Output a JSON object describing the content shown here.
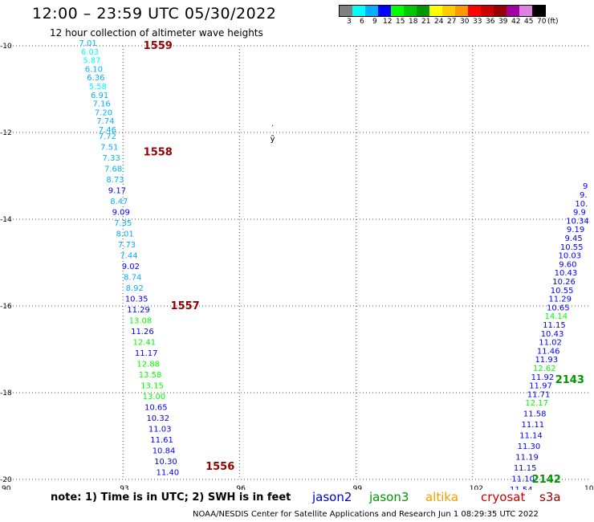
{
  "header": {
    "title": "12:00 – 23:59 UTC 05/30/2022",
    "subtitle": "12 hour collection of altimeter wave heights"
  },
  "color_scale": {
    "colors": [
      "#808080",
      "#00ffff",
      "#00b0ff",
      "#0000ff",
      "#00ff00",
      "#00c800",
      "#009600",
      "#ffff00",
      "#ffcc00",
      "#ff9900",
      "#ff0000",
      "#c80000",
      "#960000",
      "#a000a0",
      "#e080e0",
      "#000000"
    ],
    "labels": [
      "3",
      "6",
      "9",
      "12",
      "15",
      "18",
      "21",
      "24",
      "27",
      "30",
      "33",
      "36",
      "39",
      "42",
      "45",
      "70",
      "(ft)"
    ]
  },
  "footer": {
    "note": "note:  1) Time is in UTC;  2) SWH is in feet",
    "credit": "NOAA/NESDIS Center for Satellite Applications and Research    Jun  1 08:29:35 UTC 2022",
    "satellites": [
      {
        "name": "jason2",
        "color": "#0000c8"
      },
      {
        "name": "jason3",
        "color": "#009600"
      },
      {
        "name": "altika",
        "color": "#ff9900"
      },
      {
        "name": "cryosat",
        "color": "#c80000"
      },
      {
        "name": "s3a",
        "color": "#960000"
      }
    ]
  },
  "chart_data": {
    "type": "scatter",
    "title": "12:00 – 23:59 UTC 05/30/2022",
    "subtitle": "12 hour collection of altimeter wave heights",
    "xlim": [
      90,
      105
    ],
    "ylim": [
      -20,
      -10
    ],
    "x_ticks": [
      "90",
      "93",
      "96",
      "99",
      "102",
      "105"
    ],
    "y_ticks": [
      "-10",
      "-12",
      "-14",
      "-16",
      "-18",
      "-20"
    ],
    "x_tick_values": [
      90,
      93,
      96,
      99,
      102,
      105
    ],
    "y_tick_values": [
      -10,
      -12,
      -14,
      -16,
      -18,
      -20
    ],
    "grid": true,
    "units": "ft",
    "tracks": [
      {
        "name": "track-west",
        "points": [
          {
            "lon": 92.1,
            "lat": -10.0,
            "v": "7.01",
            "c": "#00b0ff"
          },
          {
            "lon": 92.15,
            "lat": -10.2,
            "v": "6.03",
            "c": "#00ffff"
          },
          {
            "lon": 92.2,
            "lat": -10.4,
            "v": "5.87",
            "c": "#00ffff"
          },
          {
            "lon": 92.25,
            "lat": -10.6,
            "v": "6.10",
            "c": "#00b0ff"
          },
          {
            "lon": 92.3,
            "lat": -10.8,
            "v": "6.36",
            "c": "#00b0ff"
          },
          {
            "lon": 92.35,
            "lat": -11.0,
            "v": "5.58",
            "c": "#00ffff"
          },
          {
            "lon": 92.4,
            "lat": -11.2,
            "v": "6.91",
            "c": "#00b0ff"
          },
          {
            "lon": 92.45,
            "lat": -11.4,
            "v": "7.16",
            "c": "#00b0ff"
          },
          {
            "lon": 92.5,
            "lat": -11.6,
            "v": "7.20",
            "c": "#00b0ff"
          },
          {
            "lon": 92.55,
            "lat": -11.8,
            "v": "7.74",
            "c": "#00b0ff"
          },
          {
            "lon": 92.6,
            "lat": -12.0,
            "v": "7.46",
            "c": "#00b0ff"
          },
          {
            "lon": 92.6,
            "lat": -12.15,
            "v": "7.72",
            "c": "#00b0ff"
          },
          {
            "lon": 92.65,
            "lat": -12.4,
            "v": "7.51",
            "c": "#00b0ff"
          },
          {
            "lon": 92.7,
            "lat": -12.65,
            "v": "7.33",
            "c": "#00b0ff"
          },
          {
            "lon": 92.75,
            "lat": -12.9,
            "v": "7.68",
            "c": "#00b0ff"
          },
          {
            "lon": 92.8,
            "lat": -13.15,
            "v": "8.73",
            "c": "#00b0ff"
          },
          {
            "lon": 92.85,
            "lat": -13.4,
            "v": "9.17",
            "c": "#0000ff"
          },
          {
            "lon": 92.9,
            "lat": -13.65,
            "v": "8.47",
            "c": "#00b0ff"
          },
          {
            "lon": 92.95,
            "lat": -13.9,
            "v": "9.09",
            "c": "#0000ff"
          },
          {
            "lon": 93.0,
            "lat": -14.15,
            "v": "7.35",
            "c": "#00b0ff"
          },
          {
            "lon": 93.05,
            "lat": -14.4,
            "v": "8.01",
            "c": "#00b0ff"
          },
          {
            "lon": 93.1,
            "lat": -14.65,
            "v": "7.73",
            "c": "#00b0ff"
          },
          {
            "lon": 93.15,
            "lat": -14.9,
            "v": "7.44",
            "c": "#00b0ff"
          },
          {
            "lon": 93.2,
            "lat": -15.15,
            "v": "9.02",
            "c": "#0000ff"
          },
          {
            "lon": 93.25,
            "lat": -15.4,
            "v": "8.74",
            "c": "#00b0ff"
          },
          {
            "lon": 93.3,
            "lat": -15.65,
            "v": "8.92",
            "c": "#00b0ff"
          },
          {
            "lon": 93.35,
            "lat": -15.9,
            "v": "10.35",
            "c": "#0000ff"
          },
          {
            "lon": 93.4,
            "lat": -16.15,
            "v": "11.29",
            "c": "#0000ff"
          },
          {
            "lon": 93.45,
            "lat": -16.4,
            "v": "13.08",
            "c": "#00ff00"
          },
          {
            "lon": 93.5,
            "lat": -16.65,
            "v": "11.26",
            "c": "#0000ff"
          },
          {
            "lon": 93.55,
            "lat": -16.9,
            "v": "12.41",
            "c": "#00ff00"
          },
          {
            "lon": 93.6,
            "lat": -17.15,
            "v": "11.17",
            "c": "#0000ff"
          },
          {
            "lon": 93.65,
            "lat": -17.4,
            "v": "12.88",
            "c": "#00ff00"
          },
          {
            "lon": 93.7,
            "lat": -17.65,
            "v": "13.58",
            "c": "#00ff00"
          },
          {
            "lon": 93.75,
            "lat": -17.9,
            "v": "13.15",
            "c": "#00ff00"
          },
          {
            "lon": 93.8,
            "lat": -18.15,
            "v": "13.00",
            "c": "#00ff00"
          },
          {
            "lon": 93.85,
            "lat": -18.4,
            "v": "10.65",
            "c": "#0000ff"
          },
          {
            "lon": 93.9,
            "lat": -18.65,
            "v": "10.32",
            "c": "#0000ff"
          },
          {
            "lon": 93.95,
            "lat": -18.9,
            "v": "11.03",
            "c": "#0000ff"
          },
          {
            "lon": 94.0,
            "lat": -19.15,
            "v": "11.61",
            "c": "#0000ff"
          },
          {
            "lon": 94.05,
            "lat": -19.4,
            "v": "10.84",
            "c": "#0000ff"
          },
          {
            "lon": 94.1,
            "lat": -19.65,
            "v": "10.30",
            "c": "#0000ff"
          },
          {
            "lon": 94.15,
            "lat": -19.9,
            "v": "11.40",
            "c": "#0000ff"
          }
        ]
      },
      {
        "name": "track-east",
        "points": [
          {
            "lon": 104.9,
            "lat": -13.3,
            "v": "9",
            "c": "#0000ff"
          },
          {
            "lon": 104.85,
            "lat": -13.5,
            "v": "9.",
            "c": "#0000ff"
          },
          {
            "lon": 104.8,
            "lat": -13.7,
            "v": "10.",
            "c": "#0000ff"
          },
          {
            "lon": 104.75,
            "lat": -13.9,
            "v": "9.9",
            "c": "#0000ff"
          },
          {
            "lon": 104.7,
            "lat": -14.1,
            "v": "10.34",
            "c": "#0000ff"
          },
          {
            "lon": 104.65,
            "lat": -14.3,
            "v": "9.19",
            "c": "#0000ff"
          },
          {
            "lon": 104.6,
            "lat": -14.5,
            "v": "9.45",
            "c": "#0000ff"
          },
          {
            "lon": 104.55,
            "lat": -14.7,
            "v": "10.55",
            "c": "#0000ff"
          },
          {
            "lon": 104.5,
            "lat": -14.9,
            "v": "10.03",
            "c": "#0000ff"
          },
          {
            "lon": 104.45,
            "lat": -15.1,
            "v": "9.60",
            "c": "#0000ff"
          },
          {
            "lon": 104.4,
            "lat": -15.3,
            "v": "10.43",
            "c": "#0000ff"
          },
          {
            "lon": 104.35,
            "lat": -15.5,
            "v": "10.26",
            "c": "#0000ff"
          },
          {
            "lon": 104.3,
            "lat": -15.7,
            "v": "10.55",
            "c": "#0000ff"
          },
          {
            "lon": 104.25,
            "lat": -15.9,
            "v": "11.29",
            "c": "#0000ff"
          },
          {
            "lon": 104.2,
            "lat": -16.1,
            "v": "10.65",
            "c": "#0000ff"
          },
          {
            "lon": 104.15,
            "lat": -16.3,
            "v": "14.14",
            "c": "#00ff00"
          },
          {
            "lon": 104.1,
            "lat": -16.5,
            "v": "11.15",
            "c": "#0000ff"
          },
          {
            "lon": 104.05,
            "lat": -16.7,
            "v": "10.43",
            "c": "#0000ff"
          },
          {
            "lon": 104.0,
            "lat": -16.9,
            "v": "11.02",
            "c": "#0000ff"
          },
          {
            "lon": 103.95,
            "lat": -17.1,
            "v": "11.46",
            "c": "#0000ff"
          },
          {
            "lon": 103.9,
            "lat": -17.3,
            "v": "11.93",
            "c": "#0000ff"
          },
          {
            "lon": 103.85,
            "lat": -17.5,
            "v": "12.62",
            "c": "#00ff00"
          },
          {
            "lon": 103.8,
            "lat": -17.7,
            "v": "11.92",
            "c": "#0000ff"
          },
          {
            "lon": 103.75,
            "lat": -17.9,
            "v": "11.97",
            "c": "#0000ff"
          },
          {
            "lon": 103.7,
            "lat": -18.1,
            "v": "11.71",
            "c": "#0000ff"
          },
          {
            "lon": 103.65,
            "lat": -18.3,
            "v": "12.17",
            "c": "#00ff00"
          },
          {
            "lon": 103.6,
            "lat": -18.55,
            "v": "11.58",
            "c": "#0000ff"
          },
          {
            "lon": 103.55,
            "lat": -18.8,
            "v": "11.11",
            "c": "#0000ff"
          },
          {
            "lon": 103.5,
            "lat": -19.05,
            "v": "11.14",
            "c": "#0000ff"
          },
          {
            "lon": 103.45,
            "lat": -19.3,
            "v": "11.30",
            "c": "#0000ff"
          },
          {
            "lon": 103.4,
            "lat": -19.55,
            "v": "11.19",
            "c": "#0000ff"
          },
          {
            "lon": 103.35,
            "lat": -19.8,
            "v": "11.15",
            "c": "#0000ff"
          },
          {
            "lon": 103.3,
            "lat": -20.05,
            "v": "11.10",
            "c": "#0000ff"
          },
          {
            "lon": 103.25,
            "lat": -20.3,
            "v": "11.54",
            "c": "#0000ff"
          }
        ]
      }
    ],
    "pass_labels": [
      {
        "lon": 93.9,
        "lat": -10.0,
        "text": "1559",
        "c": "#960000"
      },
      {
        "lon": 93.9,
        "lat": -12.45,
        "text": "1558",
        "c": "#960000"
      },
      {
        "lon": 94.6,
        "lat": -16.0,
        "text": "1557",
        "c": "#960000"
      },
      {
        "lon": 95.5,
        "lat": -19.7,
        "text": "1556",
        "c": "#960000"
      },
      {
        "lon": 104.5,
        "lat": -17.7,
        "text": "2143",
        "c": "#009600"
      },
      {
        "lon": 103.9,
        "lat": -20.0,
        "text": "2142",
        "c": "#009600"
      }
    ],
    "markers": [
      {
        "lon": 96.85,
        "lat": -11.85,
        "symbol": "."
      },
      {
        "lon": 96.85,
        "lat": -12.2,
        "symbol": "ȳ"
      }
    ]
  }
}
